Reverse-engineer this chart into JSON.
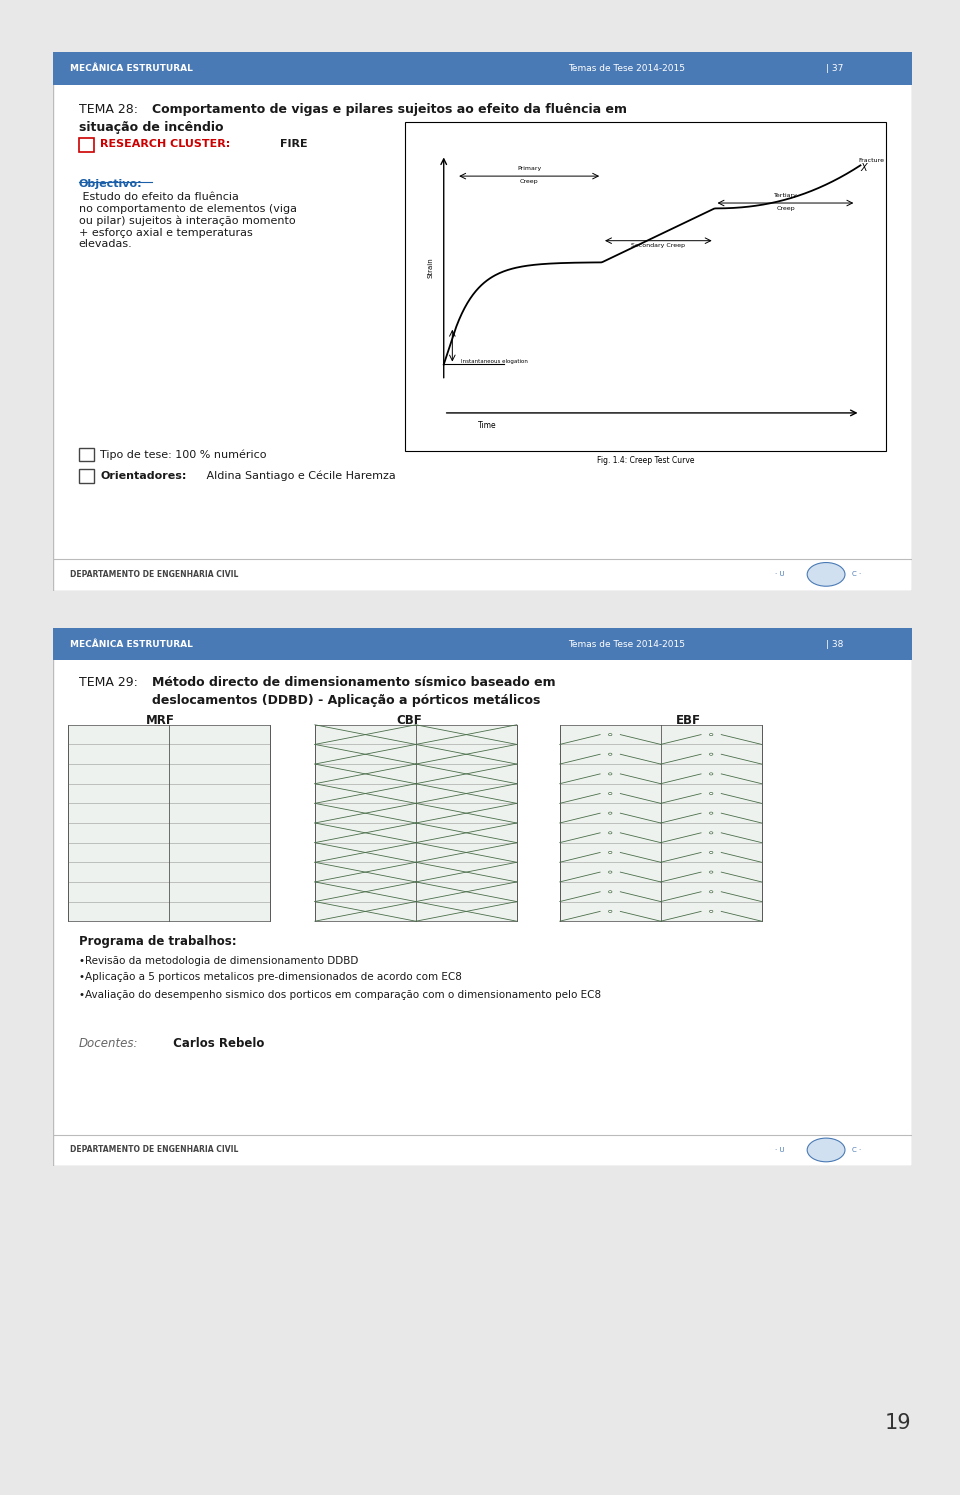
{
  "page_bg": "#e8e8e8",
  "slide_bg": "#ffffff",
  "header_bg": "#4a7ab5",
  "header_text_color": "#ffffff",
  "header_left": "MECÂNICA ESTRUTURAL",
  "header_right1": "Temas de Tese 2014-2015",
  "header_right2": "| 37",
  "header_right2_s2": "| 38",
  "footer_text": "DEPARTAMENTO DE ENGENHARIA CIVIL",
  "slide1": {
    "tema_prefix": "TEMA 28: ",
    "tema_line1": "Comportamento de vigas e pilares sujeitos ao efeito da fluência em",
    "tema_line2": "situação de incêndio",
    "cluster_label": "RESEARCH CLUSTER:",
    "cluster_value": "  FIRE",
    "objectivo_label": "Objectivo:",
    "objectivo_body": " Estudo do efeito da fluência\nno comportamento de elementos (viga\nou pilar) sujeitos à interação momento\n+ esforço axial e temperaturas\nelevadas.",
    "tipo_tese": "Tipo de tese: 100 % numérico",
    "orientadores_label": "Orientadores:",
    "orientadores_body": " Aldina Santiago e Cécile Haremza",
    "fig_caption": "Fig. 1.4: Creep Test Curve"
  },
  "slide2": {
    "tema_prefix": "TEMA 29: ",
    "tema_line1": "Método directo de dimensionamento sísmico baseado em",
    "tema_line2": "deslocamentos (DDBD) - Aplicação a pórticos metálicos",
    "labels": [
      "MRF",
      "CBF",
      "EBF"
    ],
    "programa_title": "Programa de trabalhos:",
    "programa_items": [
      "Revisão da metodologia de dimensionamento DDBD",
      "Aplicação a 5 porticos metalicos pre-dimensionados de acordo com EC8",
      "Avaliação do desempenho sismico dos porticos em comparação com o dimensionamento pelo EC8"
    ],
    "docentes_label": "Docentes:",
    "docentes_body": " Carlos Rebelo"
  },
  "accent_color": "#cc0000",
  "blue_text": "#1a5fa8",
  "dark_text": "#1a1a1a",
  "gray_text": "#666666",
  "slide_border": "#bbbbbb",
  "frame_color": "#999999"
}
